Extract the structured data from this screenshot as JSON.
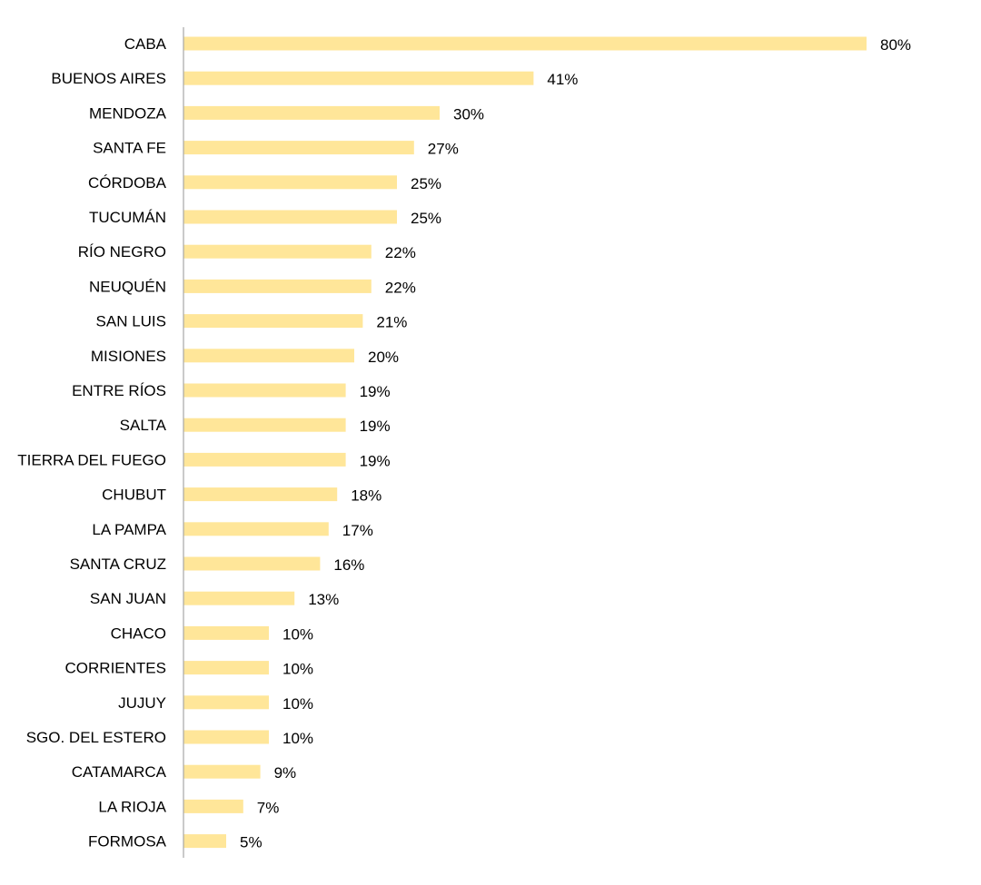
{
  "chart_data": {
    "type": "bar",
    "orientation": "horizontal",
    "categories": [
      "CABA",
      "BUENOS AIRES",
      "MENDOZA",
      "SANTA FE",
      "CÓRDOBA",
      "TUCUMÁN",
      "RÍO NEGRO",
      "NEUQUÉN",
      "SAN LUIS",
      "MISIONES",
      "ENTRE RÍOS",
      "SALTA",
      "TIERRA DEL FUEGO",
      "CHUBUT",
      "LA PAMPA",
      "SANTA CRUZ",
      "SAN JUAN",
      "CHACO",
      "CORRIENTES",
      "JUJUY",
      "SGO. DEL ESTERO",
      "CATAMARCA",
      "LA RIOJA",
      "FORMOSA"
    ],
    "values": [
      80,
      41,
      30,
      27,
      25,
      25,
      22,
      22,
      21,
      20,
      19,
      19,
      19,
      18,
      17,
      16,
      13,
      10,
      10,
      10,
      10,
      9,
      7,
      5
    ],
    "data_labels": [
      "80%",
      "41%",
      "30%",
      "27%",
      "25%",
      "25%",
      "22%",
      "22%",
      "21%",
      "20%",
      "19%",
      "19%",
      "19%",
      "18%",
      "17%",
      "16%",
      "13%",
      "10%",
      "10%",
      "10%",
      "10%",
      "9%",
      "7%",
      "5%"
    ],
    "value_unit": "%",
    "xlim": [
      0,
      80
    ],
    "grid": false,
    "legend": "none",
    "title": "",
    "xlabel": "",
    "ylabel": "",
    "bar_color": "#FFE699",
    "axis_color": "#A6A6A6"
  }
}
